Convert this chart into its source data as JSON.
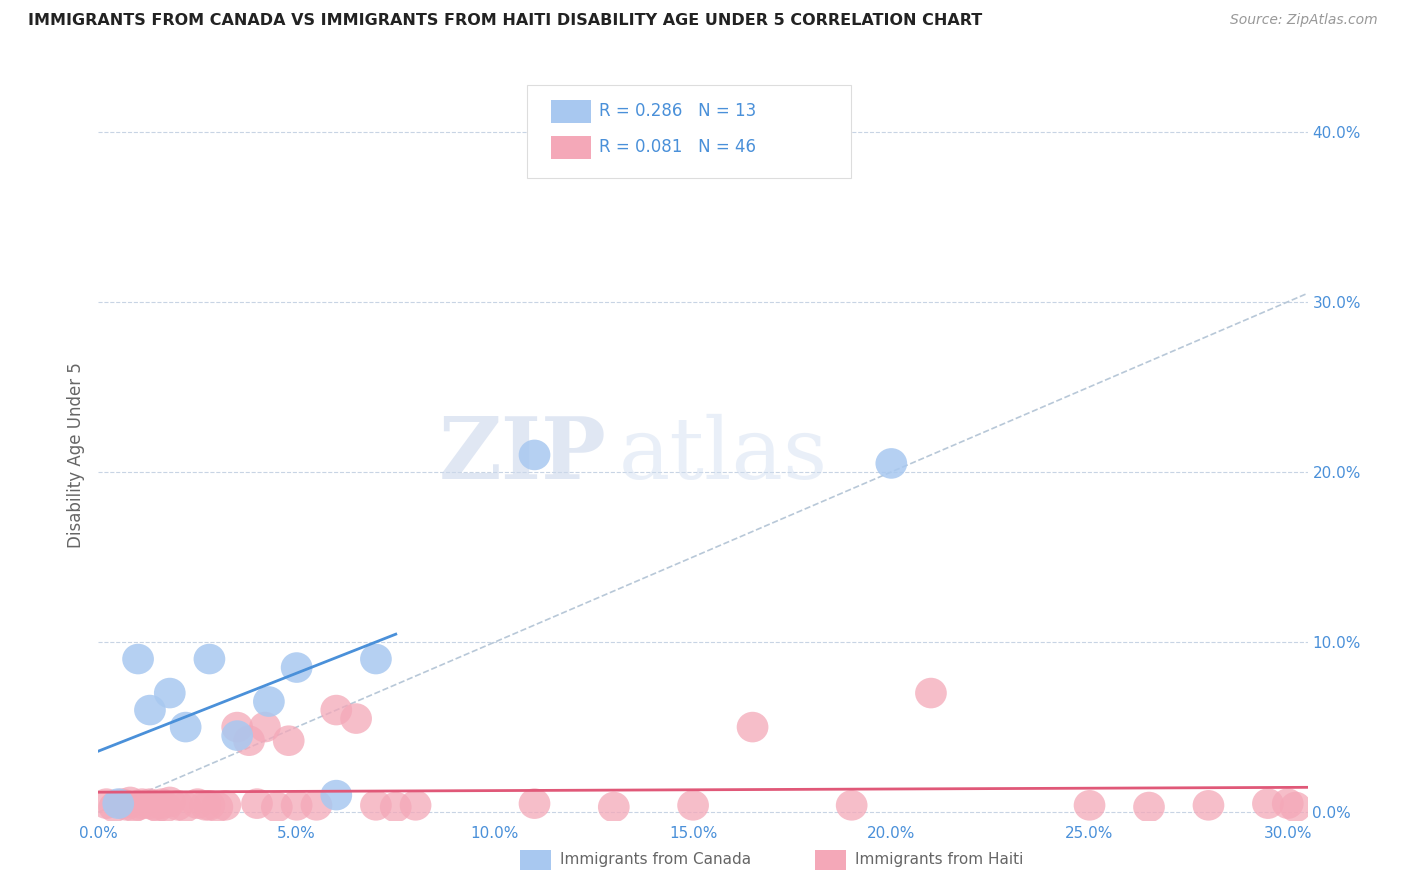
{
  "title": "IMMIGRANTS FROM CANADA VS IMMIGRANTS FROM HAITI DISABILITY AGE UNDER 5 CORRELATION CHART",
  "source": "Source: ZipAtlas.com",
  "ylabel": "Disability Age Under 5",
  "xlim": [
    0.0,
    0.305
  ],
  "ylim": [
    -0.005,
    0.425
  ],
  "canada_color": "#a8c8f0",
  "canada_line_color": "#4a90d9",
  "haiti_color": "#f4a8b8",
  "haiti_line_color": "#e05878",
  "diagonal_color": "#b8c8d8",
  "canada_R": 0.286,
  "canada_N": 13,
  "haiti_R": 0.081,
  "haiti_N": 46,
  "canada_x": [
    0.005,
    0.01,
    0.013,
    0.018,
    0.022,
    0.028,
    0.035,
    0.043,
    0.05,
    0.06,
    0.07,
    0.11,
    0.2
  ],
  "canada_y": [
    0.005,
    0.09,
    0.06,
    0.07,
    0.05,
    0.09,
    0.045,
    0.065,
    0.085,
    0.01,
    0.09,
    0.21,
    0.205
  ],
  "haiti_x": [
    0.002,
    0.004,
    0.006,
    0.007,
    0.008,
    0.009,
    0.01,
    0.011,
    0.013,
    0.014,
    0.015,
    0.016,
    0.017,
    0.018,
    0.02,
    0.022,
    0.025,
    0.027,
    0.028,
    0.03,
    0.032,
    0.035,
    0.038,
    0.04,
    0.042,
    0.045,
    0.048,
    0.05,
    0.055,
    0.06,
    0.065,
    0.07,
    0.075,
    0.08,
    0.11,
    0.13,
    0.15,
    0.165,
    0.19,
    0.21,
    0.25,
    0.265,
    0.28,
    0.295,
    0.3,
    0.302
  ],
  "haiti_y": [
    0.005,
    0.003,
    0.005,
    0.004,
    0.006,
    0.003,
    0.004,
    0.005,
    0.005,
    0.004,
    0.003,
    0.005,
    0.003,
    0.006,
    0.004,
    0.003,
    0.005,
    0.004,
    0.004,
    0.003,
    0.004,
    0.05,
    0.042,
    0.005,
    0.05,
    0.003,
    0.042,
    0.004,
    0.004,
    0.06,
    0.055,
    0.004,
    0.003,
    0.004,
    0.005,
    0.003,
    0.004,
    0.05,
    0.004,
    0.07,
    0.004,
    0.003,
    0.004,
    0.005,
    0.005,
    0.003
  ],
  "watermark_zip": "ZIP",
  "watermark_atlas": "atlas",
  "background_color": "#ffffff",
  "grid_color": "#c8d4e4",
  "legend_color": "#4a90d9",
  "axis_color": "#4a90d9",
  "label_color": "#666666"
}
